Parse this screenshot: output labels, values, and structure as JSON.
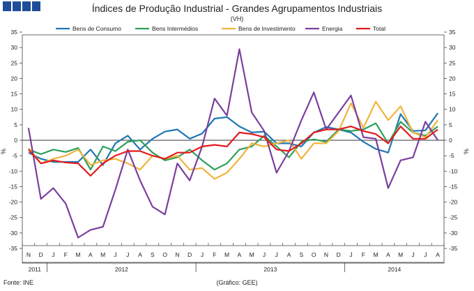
{
  "chart_data": {
    "type": "line",
    "title": "Índices de Produção Industrial - Grandes Agrupamentos Industriais",
    "subtitle": "(VH)",
    "ylabel": "%",
    "ylim": [
      -35,
      35
    ],
    "yticks": [
      35,
      30,
      25,
      20,
      15,
      10,
      5,
      0,
      -5,
      -10,
      -15,
      -20,
      -25,
      -30,
      -35
    ],
    "categories": [
      "N",
      "D",
      "J",
      "F",
      "M",
      "A",
      "M",
      "J",
      "J",
      "A",
      "S",
      "O",
      "N",
      "D",
      "J",
      "F",
      "M",
      "A",
      "M",
      "J",
      "J",
      "A",
      "S",
      "O",
      "N",
      "D",
      "J",
      "F",
      "M",
      "A",
      "M",
      "J",
      "J",
      "A"
    ],
    "years": [
      {
        "label": "2011",
        "start": 0,
        "end": 1
      },
      {
        "label": "2012",
        "start": 2,
        "end": 13
      },
      {
        "label": "2013",
        "start": 14,
        "end": 25
      },
      {
        "label": "2014",
        "start": 26,
        "end": 33
      }
    ],
    "series": [
      {
        "name": "Bens de Consumo",
        "color": "#1f77b4",
        "values": [
          -4,
          -6,
          -7,
          -7,
          -7,
          -3,
          -8,
          -1,
          1.5,
          -3,
          0.5,
          2.8,
          3.5,
          0.5,
          2.2,
          7,
          7.5,
          4.5,
          2.5,
          2.8,
          -1,
          -1,
          -2,
          2.5,
          4.3,
          3.5,
          2.5,
          -0.5,
          -2.8,
          -4,
          8.5,
          3,
          3.2,
          8.8
        ]
      },
      {
        "name": "Bens Intermédios",
        "color": "#2ca05a",
        "values": [
          -3,
          -4.5,
          -3,
          -3.8,
          -2.5,
          -9.5,
          -2,
          -3.5,
          -0.5,
          0,
          -4,
          -6.5,
          -5.5,
          -3,
          -6.5,
          -9.5,
          -7.5,
          -3,
          -2,
          1.5,
          -2,
          -5.5,
          -0.5,
          0.3,
          -0.5,
          3.5,
          3,
          3.5,
          5.5,
          -1,
          6,
          2.5,
          1.5,
          4.5
        ]
      },
      {
        "name": "Bens de Investimento",
        "color": "#f0b43c",
        "values": [
          -2.5,
          -7.5,
          -6,
          -5,
          -3,
          -8,
          -6.5,
          -6,
          -7.5,
          -9.5,
          -5,
          -6,
          -5,
          -9.5,
          -9,
          -12.5,
          -10.5,
          -6,
          -1,
          -2,
          -1,
          0,
          -6,
          -1,
          -1,
          3,
          12,
          4,
          12.5,
          6.5,
          11,
          2.5,
          1,
          6.5
        ]
      },
      {
        "name": "Energia",
        "color": "#7b3f9e",
        "values": [
          4,
          -19,
          -15.5,
          -20.5,
          -31.5,
          -29,
          -28,
          -16,
          -3,
          -13,
          -21.5,
          -24,
          -7.5,
          -13,
          -2,
          13.5,
          8,
          29.5,
          9,
          3,
          -10.5,
          -3.5,
          6.5,
          15.5,
          3.5,
          9,
          14.5,
          1,
          0.5,
          -15.5,
          -6.5,
          -5.5,
          6,
          0
        ]
      },
      {
        "name": "Total",
        "color": "#e31a1c",
        "values": [
          -3,
          -7.5,
          -6.5,
          -7.2,
          -7.5,
          -11.5,
          -7.5,
          -5,
          -3.5,
          -3.5,
          -5,
          -6,
          -4,
          -4,
          -2,
          -1.5,
          -2,
          2.5,
          2,
          1,
          -3,
          -3.5,
          -1,
          2.5,
          3.5,
          3.5,
          4.5,
          3,
          2,
          -1,
          4.5,
          0.5,
          0.5,
          3.5
        ]
      }
    ]
  },
  "footer": {
    "source": "Fonte: INE",
    "credit": "(Gráfico: GEE)"
  }
}
